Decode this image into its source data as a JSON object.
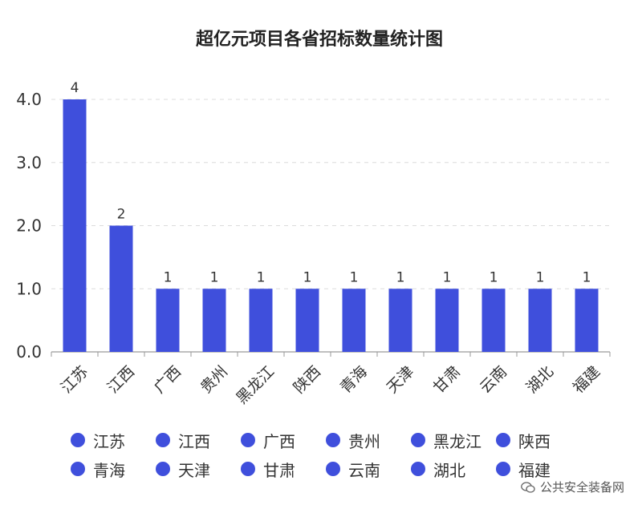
{
  "chart_data": {
    "type": "bar",
    "title": "超亿元项目各省招标数量统计图",
    "categories": [
      "江苏",
      "江西",
      "广西",
      "贵州",
      "黑龙江",
      "陕西",
      "青海",
      "天津",
      "甘肃",
      "云南",
      "湖北",
      "福建"
    ],
    "values": [
      4,
      2,
      1,
      1,
      1,
      1,
      1,
      1,
      1,
      1,
      1,
      1
    ],
    "data_labels": [
      "4",
      "2",
      "1",
      "1",
      "1",
      "1",
      "1",
      "1",
      "1",
      "1",
      "1",
      "1"
    ],
    "yticks": [
      "0.0",
      "1.0",
      "2.0",
      "3.0",
      "4.0"
    ],
    "ylim": [
      0,
      4
    ],
    "xlabel": "",
    "ylabel": "",
    "grid": "horizontal dashed",
    "legend_position": "bottom",
    "bar_color": "#3f4fdc"
  },
  "legend": {
    "items": [
      "江苏",
      "江西",
      "广西",
      "贵州",
      "黑龙江",
      "陕西",
      "青海",
      "天津",
      "甘肃",
      "云南",
      "湖北",
      "福建"
    ]
  },
  "watermark": {
    "text": "公共安全装备网",
    "icon": "wechat-icon"
  }
}
